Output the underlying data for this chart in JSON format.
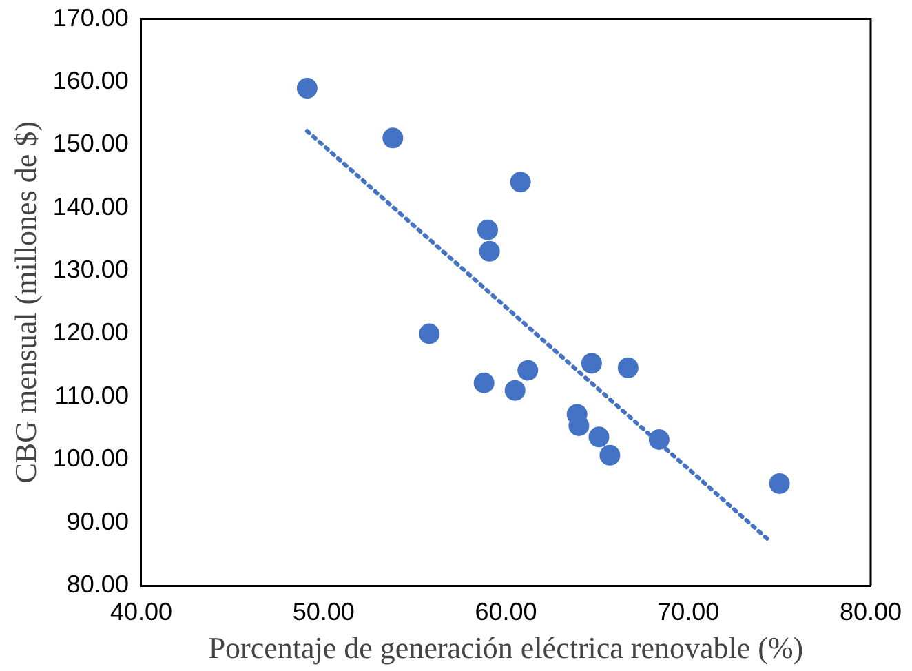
{
  "chart_data": {
    "type": "scatter",
    "xlabel": "Porcentaje de generación eléctrica renovable (%)",
    "ylabel": "CBG mensual (millones de $)",
    "xlim": [
      40,
      80
    ],
    "xticks": [
      {
        "value": 40,
        "label": "40.00"
      },
      {
        "value": 50,
        "label": "50.00"
      },
      {
        "value": 60,
        "label": "60.00"
      },
      {
        "value": 70,
        "label": "70.00"
      },
      {
        "value": 80,
        "label": "80.00"
      }
    ],
    "ylim": [
      80,
      170
    ],
    "yticks": [
      {
        "value": 80,
        "label": "80.00"
      },
      {
        "value": 90,
        "label": "90.00"
      },
      {
        "value": 100,
        "label": "100.00"
      },
      {
        "value": 110,
        "label": "110.00"
      },
      {
        "value": 120,
        "label": "120.00"
      },
      {
        "value": 130,
        "label": "130.00"
      },
      {
        "value": 140,
        "label": "140.00"
      },
      {
        "value": 150,
        "label": "150.00"
      },
      {
        "value": 160,
        "label": "160.00"
      },
      {
        "value": 170,
        "label": "170.00"
      }
    ],
    "grid": false,
    "legend": false,
    "marker": "circle",
    "series": [
      {
        "color": "#4472c4",
        "x": [
          49.1,
          53.8,
          60.8,
          59.0,
          59.1,
          55.8,
          58.8,
          60.5,
          61.2,
          64.7,
          66.7,
          63.9,
          64.0,
          65.1,
          65.7,
          68.4,
          75.0
        ],
        "values": [
          159.0,
          151.1,
          144.1,
          136.5,
          133.1,
          120.0,
          112.2,
          111.0,
          114.2,
          115.3,
          114.6,
          107.2,
          105.4,
          103.6,
          100.7,
          103.2,
          96.2
        ]
      },
      {
        "type": "line",
        "color": "#4472c4",
        "line_style": "dotted",
        "marker": "none",
        "x": [
          49.1,
          74.5
        ],
        "values": [
          152.2,
          87.0
        ]
      }
    ]
  }
}
